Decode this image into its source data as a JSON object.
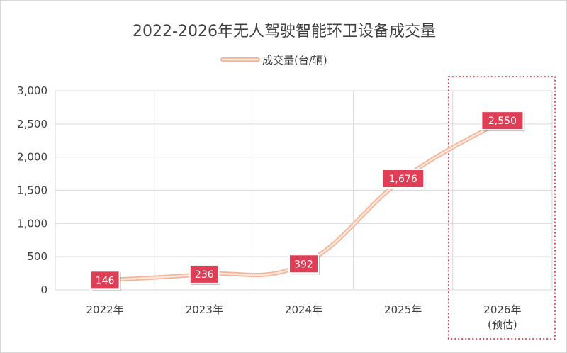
{
  "chart_data": {
    "type": "line",
    "title": "2022-2026年无人驾驶智能环卫设备成交量",
    "categories": [
      [
        "2022年"
      ],
      [
        "2023年"
      ],
      [
        "2024年"
      ],
      [
        "2025年"
      ],
      [
        "2026年",
        "(预估)"
      ]
    ],
    "series": [
      {
        "name": "成交量(台/辆)",
        "values": [
          146,
          236,
          392,
          1676,
          2550
        ]
      }
    ],
    "data_labels": [
      "146",
      "236",
      "392",
      "1,676",
      "2,550"
    ],
    "ylim": [
      0,
      3000
    ],
    "yticks": [
      0,
      500,
      1000,
      1500,
      2000,
      2500,
      3000
    ],
    "ytick_labels": [
      "0",
      "500",
      "1,000",
      "1,500",
      "2,000",
      "2,500",
      "3,000"
    ],
    "grid": true,
    "legend_position": "top",
    "smooth": true,
    "highlight_category_index": 4,
    "colors": {
      "line_outer": "#f4b49a",
      "line_inner": "#fde6dc",
      "label_bg": "#e03e57",
      "label_border": "#ffffff",
      "highlight_border": "#e03e57",
      "grid": "#d9d9d9",
      "text": "#404040"
    }
  }
}
